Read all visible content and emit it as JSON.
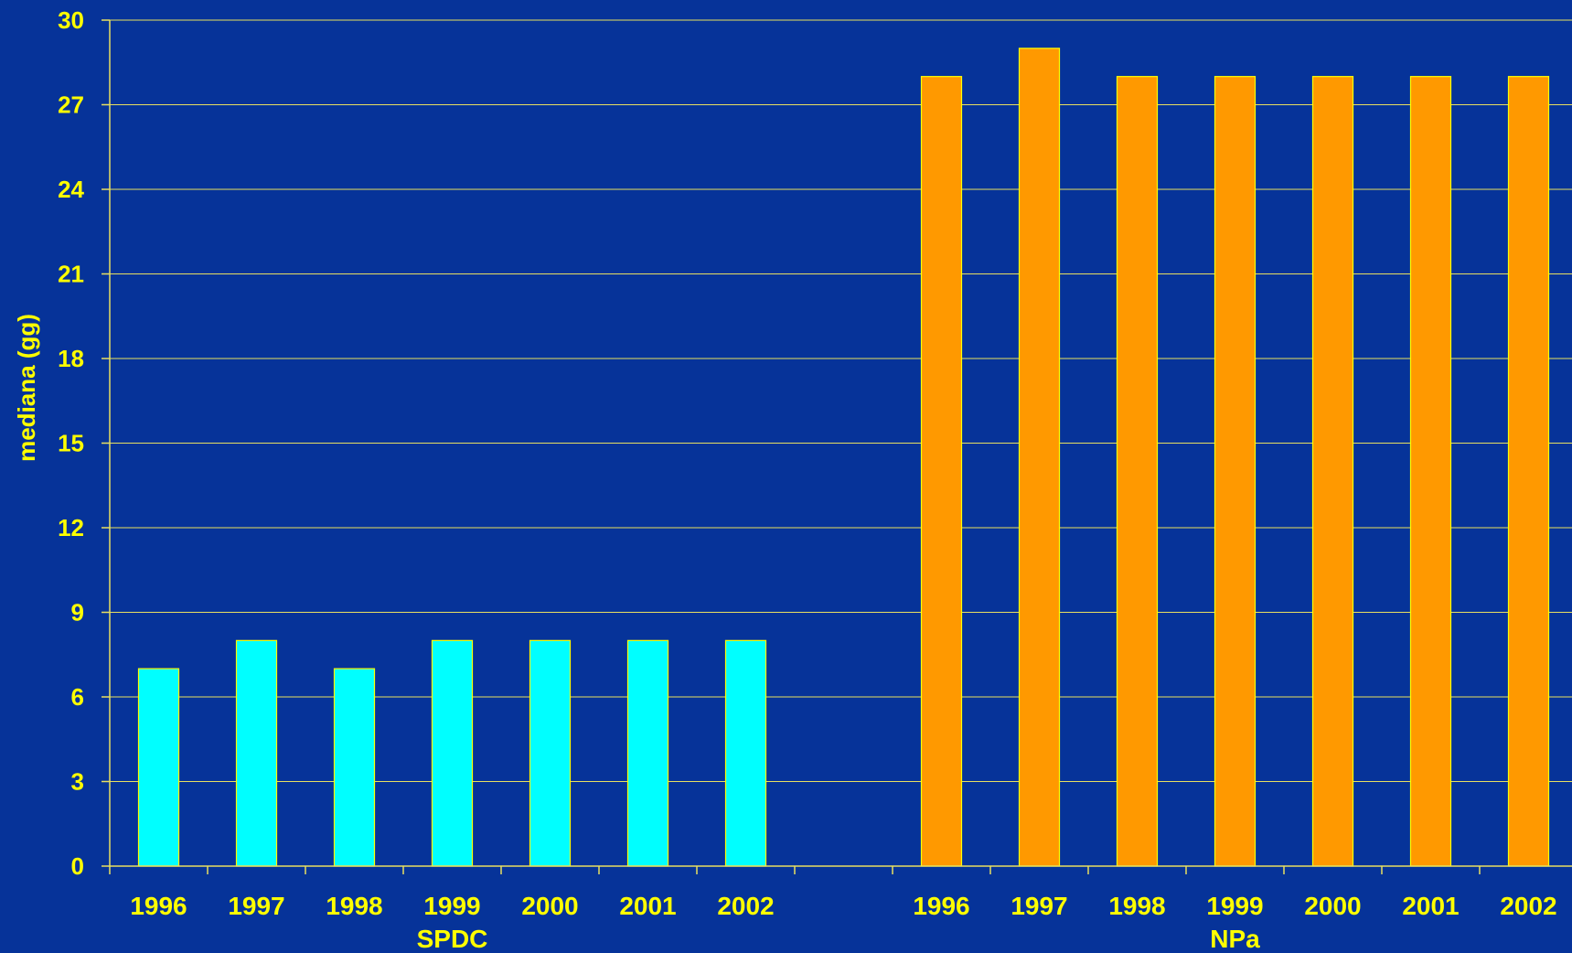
{
  "chart_data": {
    "type": "bar",
    "title": "",
    "ylabel": "mediana (gg)",
    "ylim": [
      0,
      30
    ],
    "yticks": [
      "0",
      "3",
      "6",
      "9",
      "12",
      "15",
      "18",
      "21",
      "24",
      "27",
      "30"
    ],
    "grid": true,
    "groups": [
      {
        "label": "SPDC",
        "color": "#00ffff",
        "categories": [
          "1996",
          "1997",
          "1998",
          "1999",
          "2000",
          "2001",
          "2002"
        ],
        "values": [
          7,
          8,
          7,
          8,
          8,
          8,
          8
        ]
      },
      {
        "label": "NPa",
        "color": "#ff9900",
        "categories": [
          "1996",
          "1997",
          "1998",
          "1999",
          "2000",
          "2001",
          "2002"
        ],
        "values": [
          28,
          29,
          28,
          28,
          28,
          28,
          28
        ]
      }
    ],
    "colors": {
      "background": "#063399",
      "text": "#ffff00",
      "gridline": "#e8e060",
      "bar_outline": "#ffff00"
    }
  }
}
